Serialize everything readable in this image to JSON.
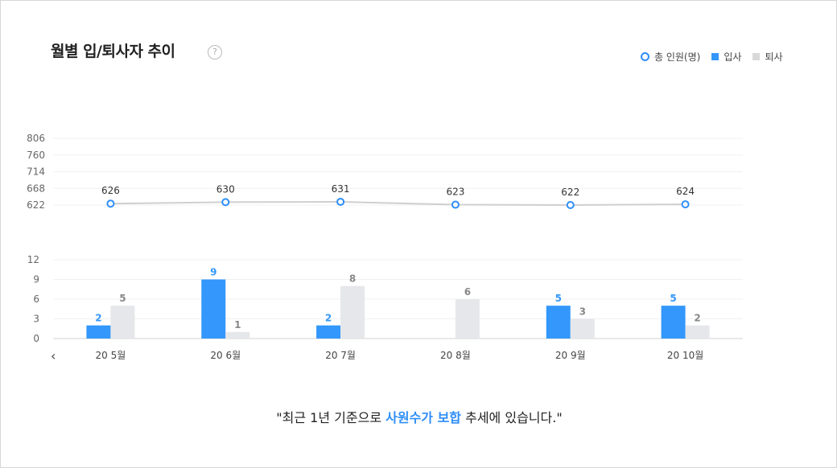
{
  "header": {
    "title": "월별 입/퇴사자 추이",
    "help_icon": "?"
  },
  "legend": {
    "total": "총 인원(명)",
    "hire": "입사",
    "resign": "퇴사"
  },
  "nav": {
    "prev": "‹"
  },
  "summary": {
    "prefix": "\"최근 1년 기준으로 ",
    "highlight": "사원수가 보합",
    "suffix": " 추세에 있습니다.\""
  },
  "colors": {
    "hire": "#3397fb",
    "resign": "#e5e7ea",
    "line": "#cfcfcf",
    "marker": "#2f8ef8"
  },
  "chart_data": [
    {
      "type": "line",
      "series": [
        {
          "name": "총 인원(명)",
          "values": [
            626,
            630,
            631,
            623,
            622,
            624
          ]
        }
      ],
      "categories": [
        "20 5월",
        "20 6월",
        "20 7월",
        "20 8월",
        "20 9월",
        "20 10월"
      ],
      "yticks": [
        622,
        668,
        714,
        760,
        806
      ],
      "ylim": [
        622,
        806
      ]
    },
    {
      "type": "bar",
      "categories": [
        "20 5월",
        "20 6월",
        "20 7월",
        "20 8월",
        "20 9월",
        "20 10월"
      ],
      "series": [
        {
          "name": "입사",
          "values": [
            2,
            9,
            2,
            0,
            5,
            5
          ]
        },
        {
          "name": "퇴사",
          "values": [
            5,
            1,
            8,
            6,
            3,
            2
          ]
        }
      ],
      "yticks": [
        0,
        3,
        6,
        9,
        12
      ],
      "ylim": [
        0,
        12
      ]
    }
  ]
}
